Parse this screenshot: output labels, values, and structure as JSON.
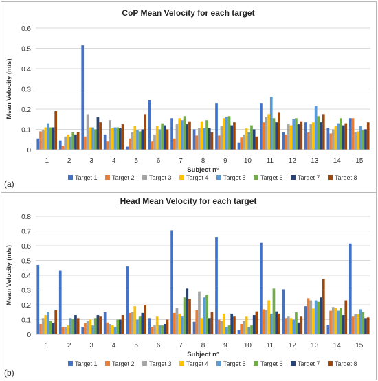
{
  "colors": [
    "#4472c4",
    "#ed7d31",
    "#a5a5a5",
    "#ffc000",
    "#5b9bd5",
    "#70ad47",
    "#264478",
    "#9e480e"
  ],
  "panels": [
    {
      "label": "(a)"
    },
    {
      "label": "(b)"
    }
  ],
  "chart_data": [
    {
      "type": "bar",
      "title": "CoP Mean Velocity for each target",
      "xlabel": "Subject n°",
      "ylabel": "Mean Velocity (m/s)",
      "ylim": [
        0,
        0.6
      ],
      "yticks": [
        "0",
        "0.1",
        "0.2",
        "0.3",
        "0.4",
        "0.5",
        "0.6"
      ],
      "categories": [
        "1",
        "2",
        "3",
        "4",
        "5",
        "6",
        "7",
        "8",
        "9",
        "10",
        "11",
        "12",
        "13",
        "14",
        "15"
      ],
      "grid": true,
      "legend": "bottom",
      "series": [
        {
          "name": "Target 1",
          "values": [
            0.055,
            0.045,
            0.515,
            0.075,
            0.015,
            0.245,
            0.155,
            0.1,
            0.23,
            0.035,
            0.23,
            0.085,
            0.135,
            0.105,
            0.155
          ]
        },
        {
          "name": "Target 2",
          "values": [
            0.09,
            0.02,
            0.065,
            0.04,
            0.055,
            0.04,
            0.055,
            0.07,
            0.07,
            0.06,
            0.135,
            0.075,
            0.085,
            0.08,
            0.155
          ]
        },
        {
          "name": "Target 3",
          "values": [
            0.095,
            0.065,
            0.175,
            0.145,
            0.085,
            0.075,
            0.125,
            0.105,
            0.115,
            0.075,
            0.16,
            0.125,
            0.125,
            0.1,
            0.085
          ]
        },
        {
          "name": "Target 4",
          "values": [
            0.11,
            0.075,
            0.11,
            0.105,
            0.115,
            0.115,
            0.155,
            0.14,
            0.155,
            0.105,
            0.175,
            0.12,
            0.135,
            0.115,
            0.09
          ]
        },
        {
          "name": "Target 5",
          "values": [
            0.13,
            0.065,
            0.11,
            0.11,
            0.095,
            0.1,
            0.145,
            0.105,
            0.16,
            0.085,
            0.26,
            0.15,
            0.215,
            0.13,
            0.115
          ]
        },
        {
          "name": "Target 6",
          "values": [
            0.11,
            0.085,
            0.1,
            0.11,
            0.09,
            0.13,
            0.165,
            0.145,
            0.165,
            0.12,
            0.155,
            0.155,
            0.165,
            0.155,
            0.095
          ]
        },
        {
          "name": "Target 7",
          "values": [
            0.11,
            0.075,
            0.16,
            0.105,
            0.1,
            0.12,
            0.125,
            0.105,
            0.12,
            0.1,
            0.135,
            0.125,
            0.135,
            0.12,
            0.1
          ]
        },
        {
          "name": "Target 8",
          "values": [
            0.19,
            0.085,
            0.135,
            0.125,
            0.175,
            0.1,
            0.14,
            0.085,
            0.135,
            0.065,
            0.185,
            0.14,
            0.175,
            0.13,
            0.135
          ]
        }
      ]
    },
    {
      "type": "bar",
      "title": "Head Mean Velocity for each target",
      "xlabel": "Subject n°",
      "ylabel": "Mean Velocity (m/s)",
      "ylim": [
        0,
        0.8
      ],
      "yticks": [
        "0",
        "0.1",
        "0.2",
        "0.3",
        "0.4",
        "0.5",
        "0.6",
        "0.7",
        "0.8"
      ],
      "categories": [
        "1",
        "2",
        "3",
        "4",
        "5",
        "6",
        "7",
        "8",
        "9",
        "10",
        "11",
        "12",
        "13",
        "14",
        "15"
      ],
      "grid": true,
      "legend": "bottom",
      "series": [
        {
          "name": "Target 1",
          "values": [
            0.47,
            0.43,
            0.05,
            0.15,
            0.46,
            0.11,
            0.705,
            0.085,
            0.66,
            0.03,
            0.62,
            0.305,
            0.19,
            0.065,
            0.615
          ]
        },
        {
          "name": "Target 2",
          "values": [
            0.07,
            0.05,
            0.075,
            0.08,
            0.145,
            0.05,
            0.145,
            0.165,
            0.1,
            0.07,
            0.17,
            0.11,
            0.245,
            0.16,
            0.12
          ]
        },
        {
          "name": "Target 3",
          "values": [
            0.11,
            0.05,
            0.09,
            0.07,
            0.15,
            0.06,
            0.18,
            0.29,
            0.09,
            0.09,
            0.165,
            0.12,
            0.23,
            0.185,
            0.135
          ]
        },
        {
          "name": "Target 4",
          "values": [
            0.13,
            0.06,
            0.1,
            0.06,
            0.19,
            0.12,
            0.14,
            0.11,
            0.14,
            0.12,
            0.23,
            0.11,
            0.175,
            0.18,
            0.135
          ]
        },
        {
          "name": "Target 5",
          "values": [
            0.15,
            0.11,
            0.06,
            0.05,
            0.1,
            0.06,
            0.12,
            0.25,
            0.05,
            0.05,
            0.14,
            0.1,
            0.23,
            0.16,
            0.17
          ]
        },
        {
          "name": "Target 6",
          "values": [
            0.09,
            0.105,
            0.11,
            0.1,
            0.12,
            0.06,
            0.25,
            0.27,
            0.06,
            0.06,
            0.31,
            0.15,
            0.22,
            0.18,
            0.15
          ]
        },
        {
          "name": "Target 7",
          "values": [
            0.075,
            0.13,
            0.13,
            0.1,
            0.145,
            0.07,
            0.31,
            0.11,
            0.14,
            0.13,
            0.155,
            0.08,
            0.25,
            0.13,
            0.11
          ]
        },
        {
          "name": "Target 8",
          "values": [
            0.165,
            0.11,
            0.12,
            0.13,
            0.2,
            0.1,
            0.24,
            0.15,
            0.12,
            0.155,
            0.14,
            0.12,
            0.375,
            0.23,
            0.115
          ]
        }
      ]
    }
  ]
}
